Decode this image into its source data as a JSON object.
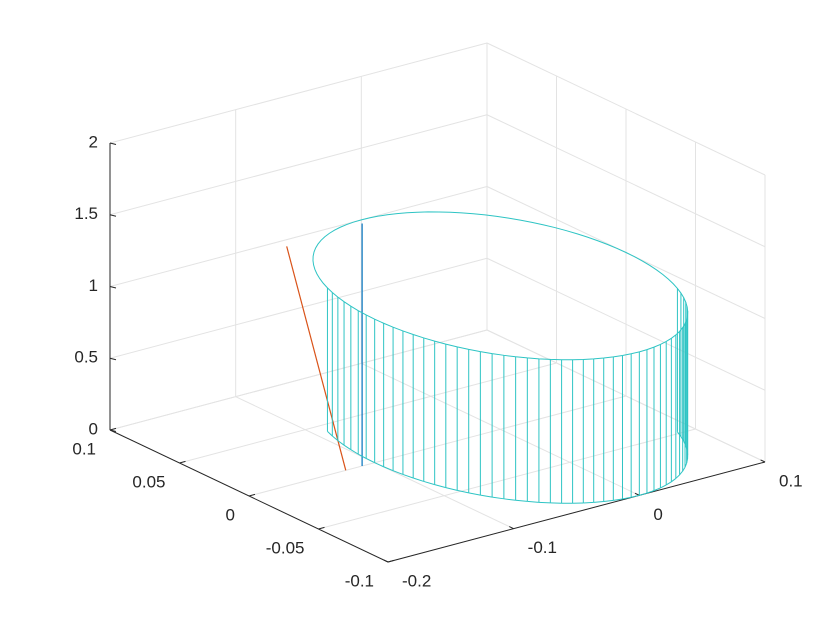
{
  "chart_data": {
    "type": "plot3d",
    "xlim": [
      -0.2,
      0.1
    ],
    "xticks": [
      -0.2,
      -0.1,
      0,
      0.1
    ],
    "ylim": [
      -0.1,
      0.1
    ],
    "yticks": [
      -0.1,
      -0.05,
      0,
      0.05,
      0.1
    ],
    "zlim": [
      0,
      2
    ],
    "zticks": [
      0,
      0.5,
      1,
      1.5,
      2
    ],
    "grid": true,
    "series": [
      {
        "kind": "line",
        "color": "#D95319",
        "x": [
          -0.123,
          -0.17
        ],
        "y": [
          0,
          0
        ],
        "z": [
          0,
          1.67
        ]
      },
      {
        "kind": "line",
        "color": "#0072BD",
        "x": [
          -0.11,
          -0.11
        ],
        "y": [
          0,
          0
        ],
        "z": [
          0,
          1.69
        ]
      },
      {
        "kind": "cylinder",
        "color": "#2EC4C4",
        "center": [
          0,
          0
        ],
        "radius": 0.1,
        "height": 1,
        "segments": 100
      }
    ]
  }
}
